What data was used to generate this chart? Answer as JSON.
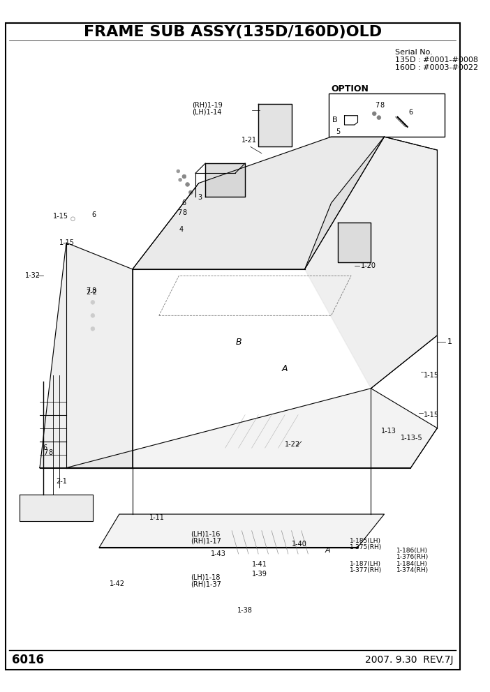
{
  "title": "FRAME SUB ASSY(135D/160D)OLD",
  "page_number": "6016",
  "date_rev": "2007. 9.30  REV.7J",
  "serial_no_lines": [
    "Serial No.",
    "135D : #0001-#0008",
    "160D : #0003-#0022"
  ],
  "option_label": "OPTION",
  "bg_color": "#ffffff",
  "border_color": "#000000",
  "text_color": "#000000",
  "fig_width": 7.02,
  "fig_height": 9.92
}
